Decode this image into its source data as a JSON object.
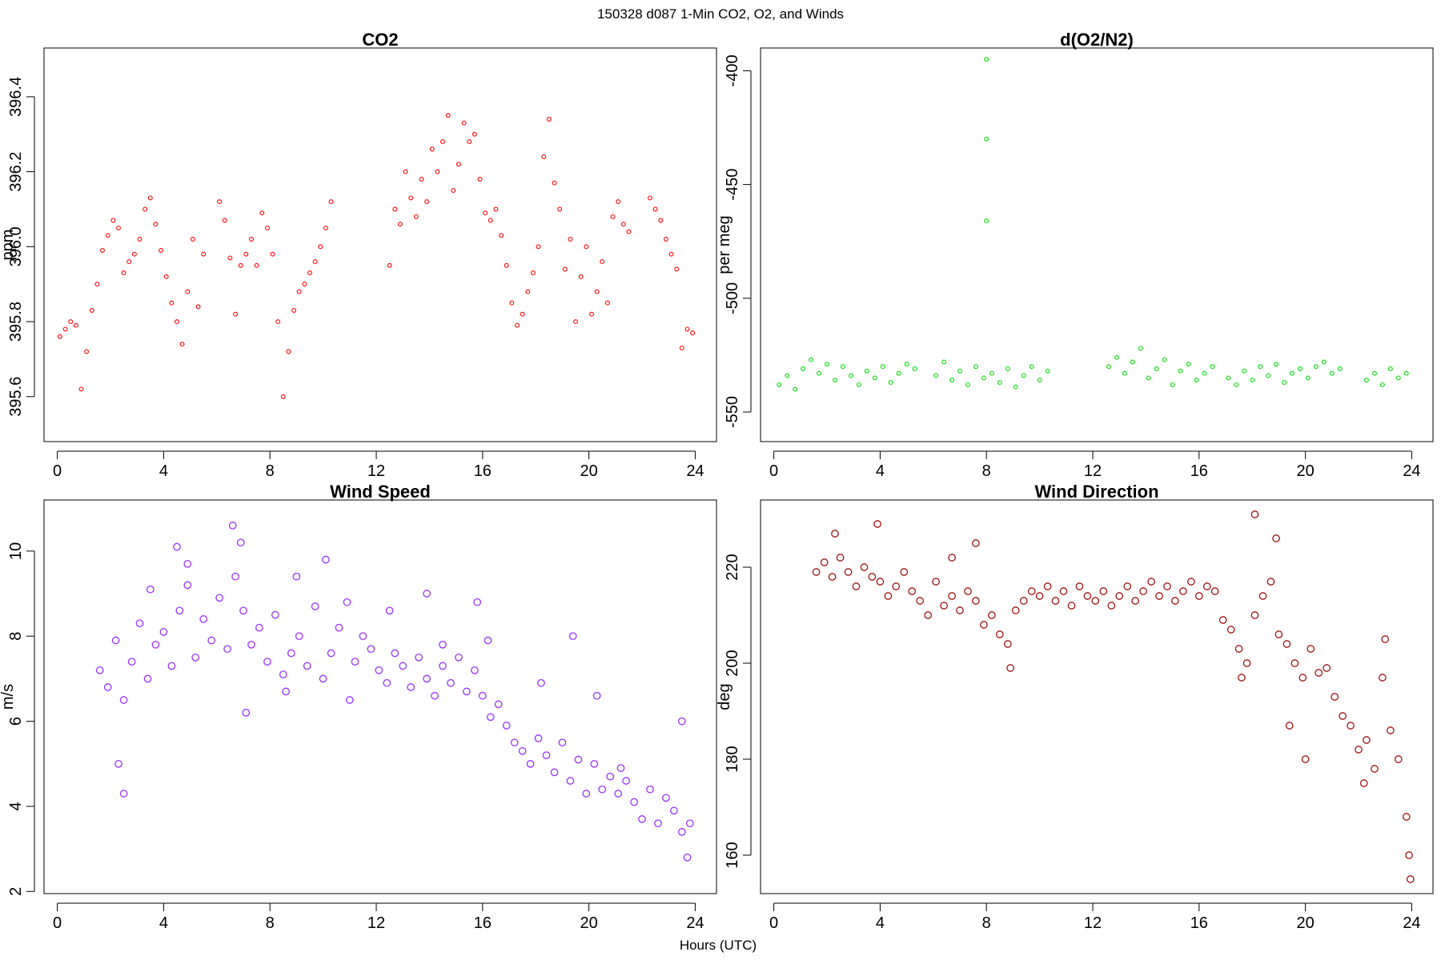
{
  "figure": {
    "title": "150328   d087   1-Min CO2, O2, and Winds",
    "xlabel": "Hours (UTC)"
  },
  "chart_data": [
    {
      "type": "scatter",
      "title": "CO2",
      "ylabel": "ppm",
      "color": "#ff0000",
      "xlim": [
        -0.5,
        24.8
      ],
      "ylim": [
        395.48,
        396.53
      ],
      "x_ticks": [
        0,
        4,
        8,
        12,
        16,
        20,
        24
      ],
      "y_ticks": [
        395.6,
        395.8,
        396.0,
        396.2,
        396.4
      ],
      "y_tick_labels": [
        "395.6",
        "395.8",
        "396.0",
        "396.2",
        "396.4"
      ],
      "series": [
        {
          "x": [
            0.1,
            0.3,
            0.5,
            0.7,
            0.9,
            1.1,
            1.3,
            1.5,
            1.7,
            1.9,
            2.1,
            2.3,
            2.5,
            2.7,
            2.9,
            3.1,
            3.3,
            3.5,
            3.7,
            3.9,
            4.1,
            4.3,
            4.5,
            4.7,
            4.9,
            5.1,
            5.3,
            5.5,
            6.1,
            6.3,
            6.5,
            6.7,
            6.9,
            7.1,
            7.3,
            7.5,
            7.7,
            7.9,
            8.1,
            8.3,
            8.5,
            8.7,
            8.9,
            9.1,
            9.3,
            9.5,
            9.7,
            9.9,
            10.1,
            10.3,
            12.5,
            12.7,
            12.9,
            13.1,
            13.3,
            13.5,
            13.7,
            13.9,
            14.1,
            14.3,
            14.5,
            14.7,
            14.9,
            15.1,
            15.3,
            15.5,
            15.7,
            15.9,
            16.1,
            16.3,
            16.5,
            16.7,
            16.9,
            17.1,
            17.3,
            17.5,
            17.7,
            17.9,
            18.1,
            18.3,
            18.5,
            18.7,
            18.9,
            19.1,
            19.3,
            19.5,
            19.7,
            19.9,
            20.1,
            20.3,
            20.5,
            20.7,
            20.9,
            21.1,
            21.3,
            21.5,
            22.3,
            22.5,
            22.7,
            22.9,
            23.1,
            23.3,
            23.5,
            23.7,
            23.9
          ],
          "y": [
            395.76,
            395.78,
            395.8,
            395.79,
            395.62,
            395.72,
            395.83,
            395.9,
            395.99,
            396.03,
            396.07,
            396.05,
            395.93,
            395.96,
            395.98,
            396.02,
            396.1,
            396.13,
            396.06,
            395.99,
            395.92,
            395.85,
            395.8,
            395.74,
            395.88,
            396.02,
            395.84,
            395.98,
            396.12,
            396.07,
            395.97,
            395.82,
            395.95,
            395.98,
            396.02,
            395.95,
            396.09,
            396.05,
            395.98,
            395.8,
            395.6,
            395.72,
            395.83,
            395.88,
            395.9,
            395.93,
            395.96,
            396.0,
            396.05,
            396.12,
            395.95,
            396.1,
            396.06,
            396.2,
            396.13,
            396.08,
            396.18,
            396.12,
            396.26,
            396.2,
            396.28,
            396.35,
            396.15,
            396.22,
            396.33,
            396.28,
            396.3,
            396.18,
            396.09,
            396.07,
            396.1,
            396.03,
            395.95,
            395.85,
            395.79,
            395.82,
            395.88,
            395.93,
            396.0,
            396.24,
            396.34,
            396.17,
            396.1,
            395.94,
            396.02,
            395.8,
            395.92,
            396.0,
            395.82,
            395.88,
            395.96,
            395.85,
            396.08,
            396.12,
            396.06,
            396.04,
            396.13,
            396.1,
            396.07,
            396.02,
            395.98,
            395.94,
            395.73,
            395.78,
            395.77
          ]
        }
      ]
    },
    {
      "type": "scatter",
      "title": "d(O2/N2)",
      "ylabel": "per meg",
      "color": "#00e000",
      "xlim": [
        -0.5,
        24.8
      ],
      "ylim": [
        -563,
        -390
      ],
      "x_ticks": [
        0,
        4,
        8,
        12,
        16,
        20,
        24
      ],
      "y_ticks": [
        -400,
        -450,
        -500,
        -550
      ],
      "y_tick_labels": [
        "-400",
        "-450",
        "-500",
        "-550"
      ],
      "series": [
        {
          "x": [
            0.2,
            0.5,
            0.8,
            1.1,
            1.4,
            1.7,
            2.0,
            2.3,
            2.6,
            2.9,
            3.2,
            3.5,
            3.8,
            4.1,
            4.4,
            4.7,
            5.0,
            5.3,
            6.1,
            6.4,
            6.7,
            7.0,
            7.3,
            7.6,
            7.9,
            8.0,
            8.0,
            8.0,
            8.2,
            8.5,
            8.8,
            9.1,
            9.4,
            9.7,
            10.0,
            10.3,
            12.6,
            12.9,
            13.2,
            13.5,
            13.8,
            14.1,
            14.4,
            14.7,
            15.0,
            15.3,
            15.6,
            15.9,
            16.2,
            16.5,
            17.1,
            17.4,
            17.7,
            18.0,
            18.3,
            18.6,
            18.9,
            19.2,
            19.5,
            19.8,
            20.1,
            20.4,
            20.7,
            21.0,
            21.3,
            22.3,
            22.6,
            22.9,
            23.2,
            23.5,
            23.8
          ],
          "y": [
            -538,
            -534,
            -540,
            -531,
            -527,
            -533,
            -529,
            -536,
            -530,
            -534,
            -538,
            -532,
            -535,
            -530,
            -537,
            -533,
            -529,
            -531,
            -534,
            -528,
            -536,
            -532,
            -538,
            -530,
            -535,
            -395,
            -430,
            -466,
            -533,
            -537,
            -531,
            -539,
            -534,
            -530,
            -536,
            -532,
            -530,
            -526,
            -533,
            -528,
            -522,
            -535,
            -531,
            -527,
            -538,
            -532,
            -529,
            -536,
            -533,
            -530,
            -535,
            -538,
            -532,
            -536,
            -530,
            -534,
            -529,
            -537,
            -533,
            -531,
            -535,
            -530,
            -528,
            -533,
            -531,
            -536,
            -533,
            -538,
            -531,
            -535,
            -533
          ]
        }
      ]
    },
    {
      "type": "scatter",
      "title": "Wind Speed",
      "ylabel": "m/s",
      "color": "#9b30ff",
      "xlim": [
        -0.5,
        24.8
      ],
      "ylim": [
        1.95,
        11.2
      ],
      "x_ticks": [
        0,
        4,
        8,
        12,
        16,
        20,
        24
      ],
      "y_ticks": [
        2,
        4,
        6,
        8,
        10
      ],
      "y_tick_labels": [
        "2",
        "4",
        "6",
        "8",
        "10"
      ],
      "series": [
        {
          "x": [
            1.6,
            1.9,
            2.2,
            2.5,
            2.8,
            3.1,
            3.4,
            3.7,
            4.0,
            4.3,
            4.6,
            4.9,
            5.2,
            5.5,
            5.8,
            6.1,
            6.4,
            6.7,
            7.0,
            7.3,
            7.6,
            7.9,
            8.2,
            8.5,
            8.8,
            9.1,
            9.4,
            9.7,
            10.0,
            10.3,
            10.6,
            10.9,
            11.2,
            11.5,
            11.8,
            12.1,
            12.4,
            12.7,
            13.0,
            13.3,
            13.6,
            13.9,
            14.2,
            14.5,
            14.8,
            15.1,
            15.4,
            15.7,
            16.0,
            16.3,
            16.6,
            16.9,
            17.2,
            17.5,
            17.8,
            18.1,
            18.4,
            18.7,
            19.0,
            19.3,
            19.6,
            19.9,
            20.2,
            20.5,
            20.8,
            21.1,
            21.4,
            21.7,
            22.0,
            22.3,
            22.6,
            22.9,
            23.2,
            23.5,
            23.8,
            2.3,
            2.5,
            4.5,
            4.9,
            6.6,
            6.9,
            9.0,
            10.1,
            12.5,
            14.5,
            15.8,
            16.2,
            19.4,
            20.3,
            23.5,
            23.7,
            3.5,
            7.1,
            8.6,
            11.0,
            13.9,
            18.2,
            21.2
          ],
          "y": [
            7.2,
            6.8,
            7.9,
            6.5,
            7.4,
            8.3,
            7.0,
            7.8,
            8.1,
            7.3,
            8.6,
            9.2,
            7.5,
            8.4,
            7.9,
            8.9,
            7.7,
            9.4,
            8.6,
            7.8,
            8.2,
            7.4,
            8.5,
            7.1,
            7.6,
            8.0,
            7.3,
            8.7,
            7.0,
            7.6,
            8.2,
            8.8,
            7.4,
            8.0,
            7.7,
            7.2,
            6.9,
            7.6,
            7.3,
            6.8,
            7.5,
            7.0,
            6.6,
            7.3,
            6.9,
            7.5,
            6.7,
            7.2,
            6.6,
            6.1,
            6.4,
            5.9,
            5.5,
            5.3,
            5.0,
            5.6,
            5.2,
            4.8,
            5.5,
            4.6,
            5.1,
            4.3,
            5.0,
            4.4,
            4.7,
            4.3,
            4.6,
            4.1,
            3.7,
            4.4,
            3.6,
            4.2,
            3.9,
            3.4,
            3.6,
            5.0,
            4.3,
            10.1,
            9.7,
            10.6,
            10.2,
            9.4,
            9.8,
            8.6,
            7.8,
            8.8,
            7.9,
            8.0,
            6.6,
            6.0,
            2.8,
            9.1,
            6.2,
            6.7,
            6.5,
            9.0,
            6.9,
            4.9
          ]
        }
      ]
    },
    {
      "type": "scatter",
      "title": "Wind Direction",
      "ylabel": "deg",
      "color": "#a01010",
      "xlim": [
        -0.5,
        24.8
      ],
      "ylim": [
        152,
        234
      ],
      "x_ticks": [
        0,
        4,
        8,
        12,
        16,
        20,
        24
      ],
      "y_ticks": [
        160,
        180,
        200,
        220
      ],
      "y_tick_labels": [
        "160",
        "180",
        "200",
        "220"
      ],
      "series": [
        {
          "x": [
            1.6,
            1.9,
            2.2,
            2.5,
            2.8,
            3.1,
            3.4,
            3.7,
            4.0,
            4.3,
            4.6,
            4.9,
            5.2,
            5.5,
            5.8,
            6.1,
            6.4,
            6.7,
            7.0,
            7.3,
            7.6,
            7.9,
            8.2,
            8.5,
            8.8,
            9.1,
            9.4,
            9.7,
            10.0,
            10.3,
            10.6,
            10.9,
            11.2,
            11.5,
            11.8,
            12.1,
            12.4,
            12.7,
            13.0,
            13.3,
            13.6,
            13.9,
            14.2,
            14.5,
            14.8,
            15.1,
            15.4,
            15.7,
            16.0,
            16.3,
            16.6,
            16.9,
            17.2,
            17.5,
            17.8,
            18.1,
            18.4,
            18.7,
            19.0,
            19.3,
            19.6,
            19.9,
            20.2,
            20.5,
            20.8,
            21.1,
            21.4,
            21.7,
            22.0,
            22.3,
            22.6,
            22.9,
            23.2,
            23.5,
            23.8,
            2.3,
            3.9,
            6.7,
            7.6,
            8.9,
            17.6,
            18.1,
            18.9,
            19.4,
            20.0,
            22.2,
            23.0,
            23.9,
            23.95
          ],
          "y": [
            219,
            221,
            218,
            222,
            219,
            216,
            220,
            218,
            217,
            214,
            216,
            219,
            215,
            213,
            210,
            217,
            212,
            214,
            211,
            215,
            213,
            208,
            210,
            206,
            204,
            211,
            213,
            215,
            214,
            216,
            213,
            215,
            212,
            216,
            214,
            213,
            215,
            212,
            214,
            216,
            213,
            215,
            217,
            214,
            216,
            213,
            215,
            217,
            214,
            216,
            215,
            209,
            207,
            203,
            200,
            210,
            214,
            217,
            206,
            204,
            200,
            197,
            203,
            198,
            199,
            193,
            189,
            187,
            182,
            184,
            178,
            197,
            186,
            180,
            168,
            227,
            229,
            222,
            225,
            199,
            197,
            231,
            226,
            187,
            180,
            175,
            205,
            160,
            155
          ]
        }
      ]
    }
  ]
}
